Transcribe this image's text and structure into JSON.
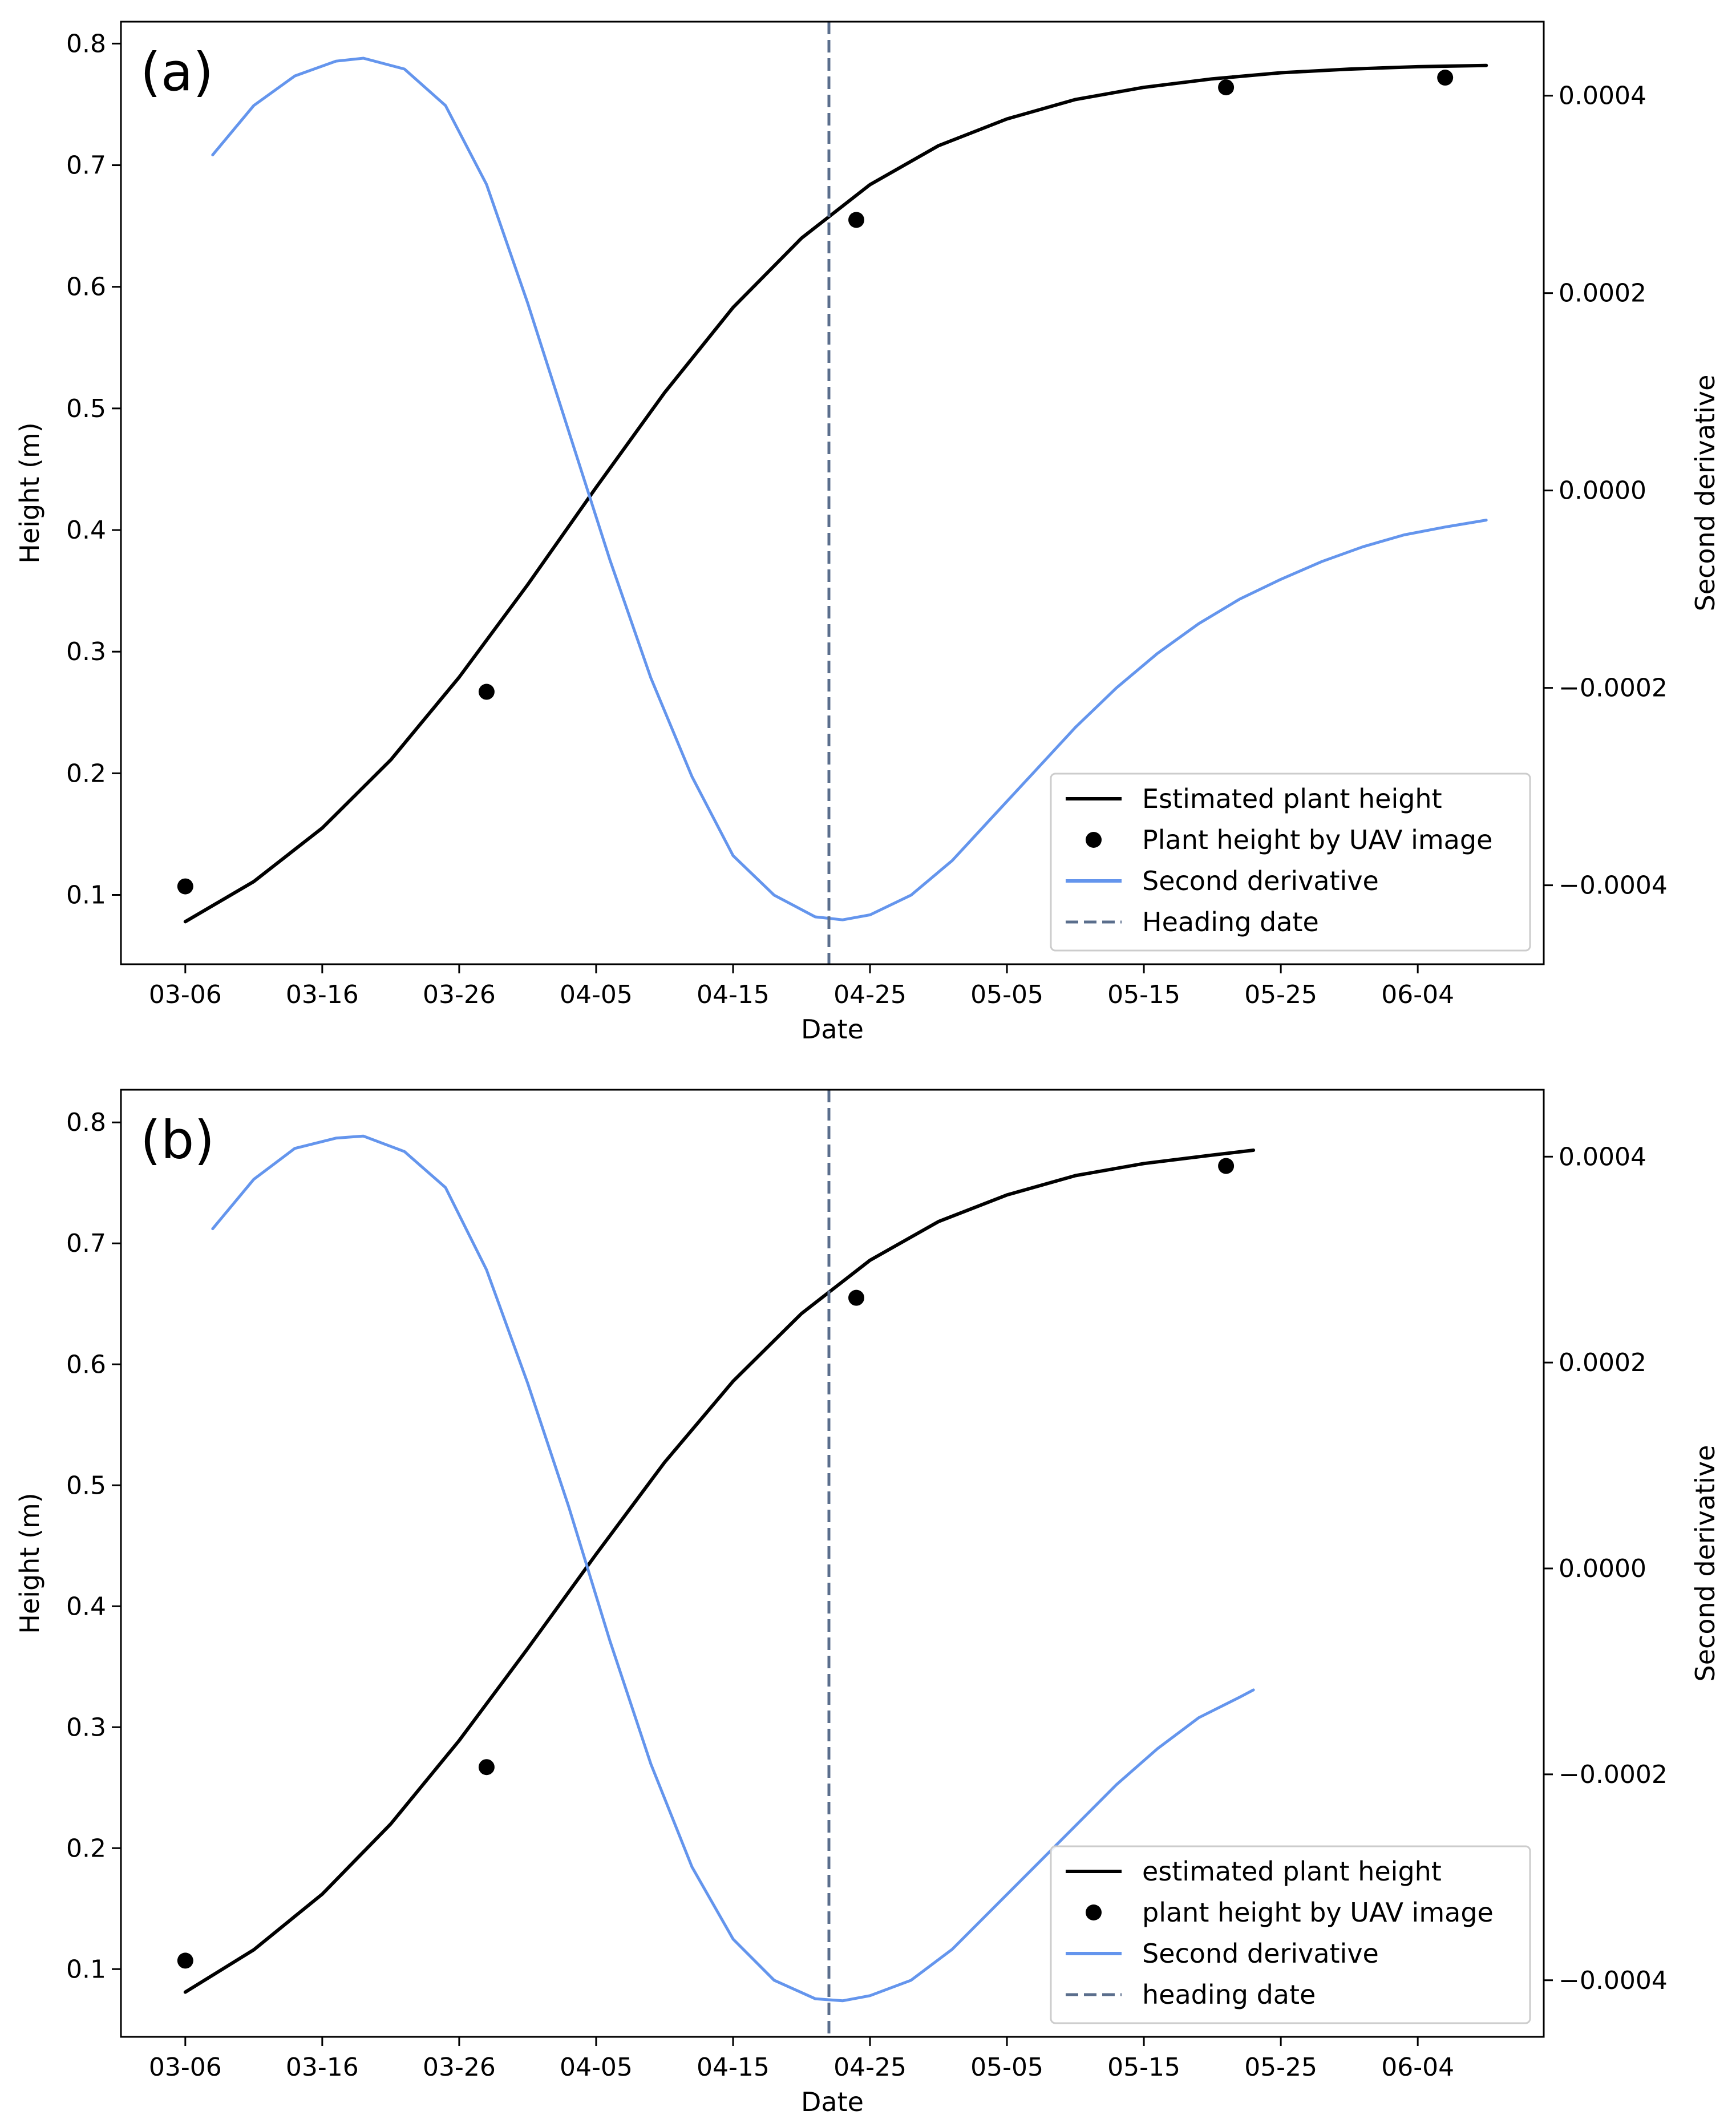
{
  "chart_data": [
    {
      "type": "line",
      "panel_label": "(a)",
      "xlabel": "Date",
      "ylabel": "Height (m)",
      "y2label": "Second derivative",
      "x_ticks": [
        {
          "day": 0,
          "label": "03-06"
        },
        {
          "day": 10,
          "label": "03-16"
        },
        {
          "day": 20,
          "label": "03-26"
        },
        {
          "day": 30,
          "label": "04-05"
        },
        {
          "day": 40,
          "label": "04-15"
        },
        {
          "day": 50,
          "label": "04-25"
        },
        {
          "day": 60,
          "label": "05-05"
        },
        {
          "day": 70,
          "label": "05-15"
        },
        {
          "day": 80,
          "label": "05-25"
        },
        {
          "day": 90,
          "label": "06-04"
        }
      ],
      "y_ticks": [
        0.1,
        0.2,
        0.3,
        0.4,
        0.5,
        0.6,
        0.7,
        0.8
      ],
      "y_tick_labels": [
        "0.1",
        "0.2",
        "0.3",
        "0.4",
        "0.5",
        "0.6",
        "0.7",
        "0.8"
      ],
      "y2_ticks": [
        -0.0004,
        -0.0002,
        0.0,
        0.0002,
        0.0004
      ],
      "y2_tick_labels": [
        "−0.0004",
        "−0.0002",
        "0.0000",
        "0.0002",
        "0.0004"
      ],
      "xlim": [
        -4.7,
        99.2
      ],
      "ylim": [
        0.043,
        0.818
      ],
      "y2lim": [
        -0.00048,
        0.000475
      ],
      "series": [
        {
          "name": "Estimated plant height",
          "kind": "line",
          "color": "#000000",
          "x": [
            0,
            5,
            10,
            15,
            20,
            25,
            30,
            35,
            40,
            45,
            50,
            55,
            60,
            65,
            70,
            75,
            80,
            85,
            90,
            95
          ],
          "y": [
            0.078,
            0.111,
            0.155,
            0.211,
            0.279,
            0.355,
            0.435,
            0.513,
            0.583,
            0.64,
            0.684,
            0.716,
            0.738,
            0.754,
            0.764,
            0.771,
            0.776,
            0.779,
            0.781,
            0.782
          ]
        },
        {
          "name": "Plant height by UAV image",
          "kind": "scatter",
          "color": "#000000",
          "x": [
            0,
            22,
            49,
            76,
            92
          ],
          "y": [
            0.107,
            0.267,
            0.655,
            0.764,
            0.772
          ]
        },
        {
          "name": "Second derivative",
          "kind": "line",
          "color": "#6495ED",
          "axis": "right",
          "x": [
            2,
            5,
            8,
            11,
            13,
            16,
            19,
            22,
            25,
            28,
            31,
            34,
            37,
            40,
            43,
            46,
            48,
            50,
            53,
            56,
            59,
            62,
            65,
            68,
            71,
            74,
            77,
            80,
            83,
            86,
            89,
            92,
            95
          ],
          "y": [
            0.00034,
            0.00039,
            0.00042,
            0.000435,
            0.000438,
            0.000427,
            0.00039,
            0.00031,
            0.00019,
            6e-05,
            -7e-05,
            -0.00019,
            -0.00029,
            -0.00037,
            -0.00041,
            -0.000432,
            -0.000435,
            -0.00043,
            -0.00041,
            -0.000375,
            -0.00033,
            -0.000285,
            -0.00024,
            -0.0002,
            -0.000165,
            -0.000135,
            -0.00011,
            -9e-05,
            -7.2e-05,
            -5.7e-05,
            -4.5e-05,
            -3.7e-05,
            -3e-05
          ]
        },
        {
          "name": "Heading date",
          "kind": "vline",
          "color": "#5a6e8c",
          "x": 47
        }
      ],
      "legend": {
        "position": "lower-right",
        "entries": [
          "Estimated plant height",
          "Plant height by UAV image",
          "Second derivative",
          "Heading date"
        ]
      }
    },
    {
      "type": "line",
      "panel_label": "(b)",
      "xlabel": "Date",
      "ylabel": "Height (m)",
      "y2label": "Second derivative",
      "x_ticks": [
        {
          "day": 0,
          "label": "03-06"
        },
        {
          "day": 10,
          "label": "03-16"
        },
        {
          "day": 20,
          "label": "03-26"
        },
        {
          "day": 30,
          "label": "04-05"
        },
        {
          "day": 40,
          "label": "04-15"
        },
        {
          "day": 50,
          "label": "04-25"
        },
        {
          "day": 60,
          "label": "05-05"
        },
        {
          "day": 70,
          "label": "05-15"
        },
        {
          "day": 80,
          "label": "05-25"
        },
        {
          "day": 90,
          "label": "06-04"
        }
      ],
      "y_ticks": [
        0.1,
        0.2,
        0.3,
        0.4,
        0.5,
        0.6,
        0.7,
        0.8
      ],
      "y_tick_labels": [
        "0.1",
        "0.2",
        "0.3",
        "0.4",
        "0.5",
        "0.6",
        "0.7",
        "0.8"
      ],
      "y2_ticks": [
        -0.0004,
        -0.0002,
        0.0,
        0.0002,
        0.0004
      ],
      "y2_tick_labels": [
        "−0.0004",
        "−0.0002",
        "0.0000",
        "0.0002",
        "0.0004"
      ],
      "xlim": [
        -4.7,
        99.2
      ],
      "ylim": [
        0.044,
        0.827
      ],
      "y2lim": [
        -0.000455,
        0.000465
      ],
      "series": [
        {
          "name": "estimated plant height",
          "kind": "line",
          "color": "#000000",
          "x": [
            0,
            5,
            10,
            15,
            20,
            25,
            30,
            35,
            40,
            45,
            50,
            55,
            60,
            65,
            70,
            75,
            78
          ],
          "y": [
            0.081,
            0.116,
            0.162,
            0.22,
            0.289,
            0.365,
            0.443,
            0.519,
            0.586,
            0.642,
            0.686,
            0.718,
            0.74,
            0.756,
            0.766,
            0.773,
            0.777
          ]
        },
        {
          "name": "plant height by UAV image",
          "kind": "scatter",
          "color": "#000000",
          "x": [
            0,
            22,
            49,
            76
          ],
          "y": [
            0.107,
            0.267,
            0.655,
            0.764
          ]
        },
        {
          "name": "Second derivative",
          "kind": "line",
          "color": "#6495ED",
          "axis": "right",
          "x": [
            2,
            5,
            8,
            11,
            13,
            16,
            19,
            22,
            25,
            28,
            31,
            34,
            37,
            40,
            43,
            46,
            48,
            50,
            53,
            56,
            59,
            62,
            65,
            68,
            71,
            74,
            77,
            78
          ],
          "y": [
            0.00033,
            0.000378,
            0.000408,
            0.000418,
            0.00042,
            0.000405,
            0.00037,
            0.00029,
            0.00018,
            6e-05,
            -7e-05,
            -0.00019,
            -0.00029,
            -0.00036,
            -0.0004,
            -0.000418,
            -0.00042,
            -0.000415,
            -0.0004,
            -0.00037,
            -0.00033,
            -0.00029,
            -0.00025,
            -0.00021,
            -0.000175,
            -0.000145,
            -0.000125,
            -0.000118
          ]
        },
        {
          "name": "heading date",
          "kind": "vline",
          "color": "#5a6e8c",
          "x": 47
        }
      ],
      "legend": {
        "position": "lower-right",
        "entries": [
          "estimated plant height",
          "plant height by UAV image",
          "Second derivative",
          "heading date"
        ]
      }
    }
  ]
}
